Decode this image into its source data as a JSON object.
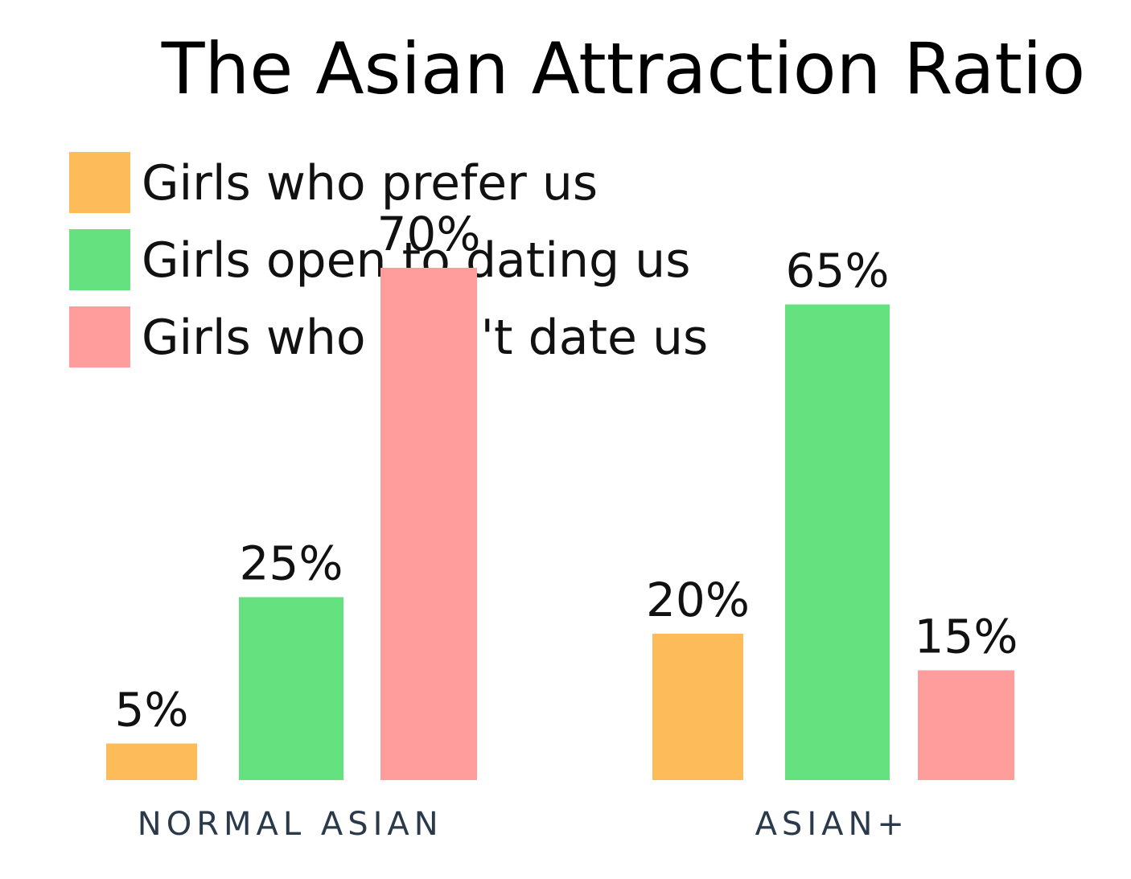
{
  "chart_data": {
    "type": "bar",
    "title": "The Asian Attraction Ratio",
    "categories": [
      "NORMAL ASIAN",
      "ASIAN+"
    ],
    "series": [
      {
        "name": "Girls who prefer us",
        "color": "#FDBC59",
        "values": [
          5,
          20
        ],
        "labels": [
          "5%",
          "20%"
        ]
      },
      {
        "name": "Girls open to dating us",
        "color": "#66E17F",
        "values": [
          25,
          65
        ],
        "labels": [
          "25%",
          "65%"
        ]
      },
      {
        "name": "Girls who won't date us",
        "color": "#FF9C9C",
        "values": [
          70,
          15
        ],
        "labels": [
          "70%",
          "15%"
        ]
      }
    ],
    "unit": "%",
    "ylim": [
      0,
      70
    ],
    "grid": false,
    "axes_visible": false,
    "legend_position": "top-left"
  }
}
